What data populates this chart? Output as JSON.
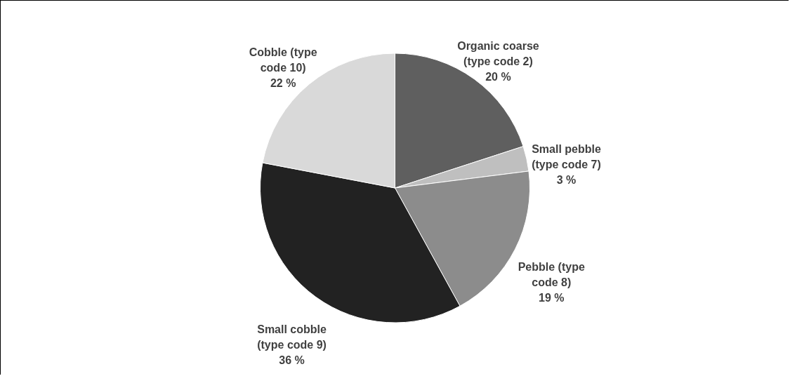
{
  "chart_data": {
    "type": "pie",
    "categories": [
      "Organic coarse (type code 2)",
      "Small pebble (type code 7)",
      "Pebble (type code 8)",
      "Small cobble (type code 9)",
      "Cobble (type code 10)"
    ],
    "values": [
      20,
      3,
      19,
      36,
      22
    ],
    "colors": [
      "#5f5f5f",
      "#bfbfbf",
      "#8c8c8c",
      "#222222",
      "#d9d9d9"
    ],
    "value_labels": [
      "20 %",
      "3 %",
      "19 %",
      "36 %",
      "22 %"
    ]
  }
}
